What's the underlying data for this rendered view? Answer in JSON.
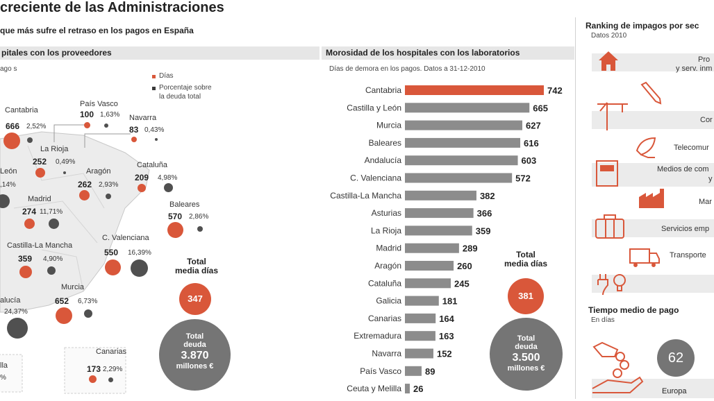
{
  "header": {
    "title": "creciente de las Administraciones",
    "subtitle": "que más sufre el retraso en los pagos en España"
  },
  "map_panel": {
    "band_title": "pitales con los proveedores",
    "note": "ago s",
    "legend": {
      "days": "Días",
      "pct_line1": "Porcentaje sobre",
      "pct_line2": "la deuda total"
    },
    "colors": {
      "orange": "#d9573a",
      "gray": "#505050"
    },
    "regions": [
      {
        "name": "Cantabria",
        "days": "666",
        "pct": "2,52%"
      },
      {
        "name": "País Vasco",
        "days": "100",
        "pct": "1,63%"
      },
      {
        "name": "Navarra",
        "days": "83",
        "pct": "0,43%"
      },
      {
        "name": "La Rioja",
        "days": "252",
        "pct": "0,49%"
      },
      {
        "name": "León",
        "days": "",
        "pct": ",14%"
      },
      {
        "name": "Aragón",
        "days": "262",
        "pct": "2,93%"
      },
      {
        "name": "Cataluña",
        "days": "209",
        "pct": "4,98%"
      },
      {
        "name": "Madrid",
        "days": "274",
        "pct": "11,71%"
      },
      {
        "name": "Baleares",
        "days": "570",
        "pct": "2,86%"
      },
      {
        "name": "Castilla-La Mancha",
        "days": "359",
        "pct": "4,90%"
      },
      {
        "name": "C. Valenciana",
        "days": "550",
        "pct": "16,39%"
      },
      {
        "name": "Murcia",
        "days": "652",
        "pct": "6,73%"
      },
      {
        "name": "alucía",
        "days": "",
        "pct": "24,37%"
      },
      {
        "name": "Canarias",
        "days": "173",
        "pct": "2,29%"
      },
      {
        "name": "lla",
        "days": "",
        "pct": "%"
      }
    ],
    "total_days_label_1": "Total",
    "total_days_label_2": "media días",
    "total_days": "347",
    "total_debt_1": "Total",
    "total_debt_2": "deuda",
    "total_debt_value": "3.870",
    "total_debt_unit": "millones €"
  },
  "chart_data": {
    "type": "bar",
    "title": "Morosidad de los hospitales con los laboratorios",
    "subtitle": "Días de demora en los pagos. Datos a 31-12-2010",
    "categories": [
      "Cantabria",
      "Castilla y León",
      "Murcia",
      "Baleares",
      "Andalucía",
      "C. Valenciana",
      "Castilla-La Mancha",
      "Asturias",
      "La Rioja",
      "Madrid",
      "Aragón",
      "Cataluña",
      "Galicia",
      "Canarias",
      "Extremadura",
      "Navarra",
      "País Vasco",
      "Ceuta y Melilla"
    ],
    "values": [
      742,
      665,
      627,
      616,
      603,
      572,
      382,
      366,
      359,
      289,
      260,
      245,
      181,
      164,
      163,
      152,
      89,
      26
    ],
    "highlight_color": "#d9573a",
    "bar_color": "#8c8c8c",
    "orientation": "horizontal"
  },
  "lab_totals": {
    "days_label_1": "Total",
    "days_label_2": "media días",
    "days": "381",
    "debt_1": "Total",
    "debt_2": "deuda",
    "debt_value": "3.500",
    "debt_unit": "millones €"
  },
  "right_panel": {
    "ranking_title": "Ranking de impagos por sec",
    "ranking_note": "Datos 2010",
    "sectors": [
      {
        "label_1": "Pro",
        "label_2": "y serv. inm",
        "icon": "house-icon"
      },
      {
        "label_1": "",
        "label_2": "",
        "icon": "pencil-icon"
      },
      {
        "label_1": "Cor",
        "label_2": "",
        "icon": "crane-icon"
      },
      {
        "label_1": "Telecomur",
        "label_2": "",
        "icon": "satellite-icon"
      },
      {
        "label_1": "Medios de com",
        "label_2": "y",
        "icon": "newspaper-icon"
      },
      {
        "label_1": "Mar",
        "label_2": "",
        "icon": "factory-icon"
      },
      {
        "label_1": "Servicios emp",
        "label_2": "",
        "icon": "briefcase-icon"
      },
      {
        "label_1": "Transporte",
        "label_2": "",
        "icon": "truck-icon"
      },
      {
        "label_1": "",
        "label_2": "",
        "icon": "plug-bulb-icon"
      }
    ],
    "payment_title": "Tiempo medio de pago",
    "payment_note": "En días",
    "europe_value": "62",
    "europe_label": "Europa"
  }
}
